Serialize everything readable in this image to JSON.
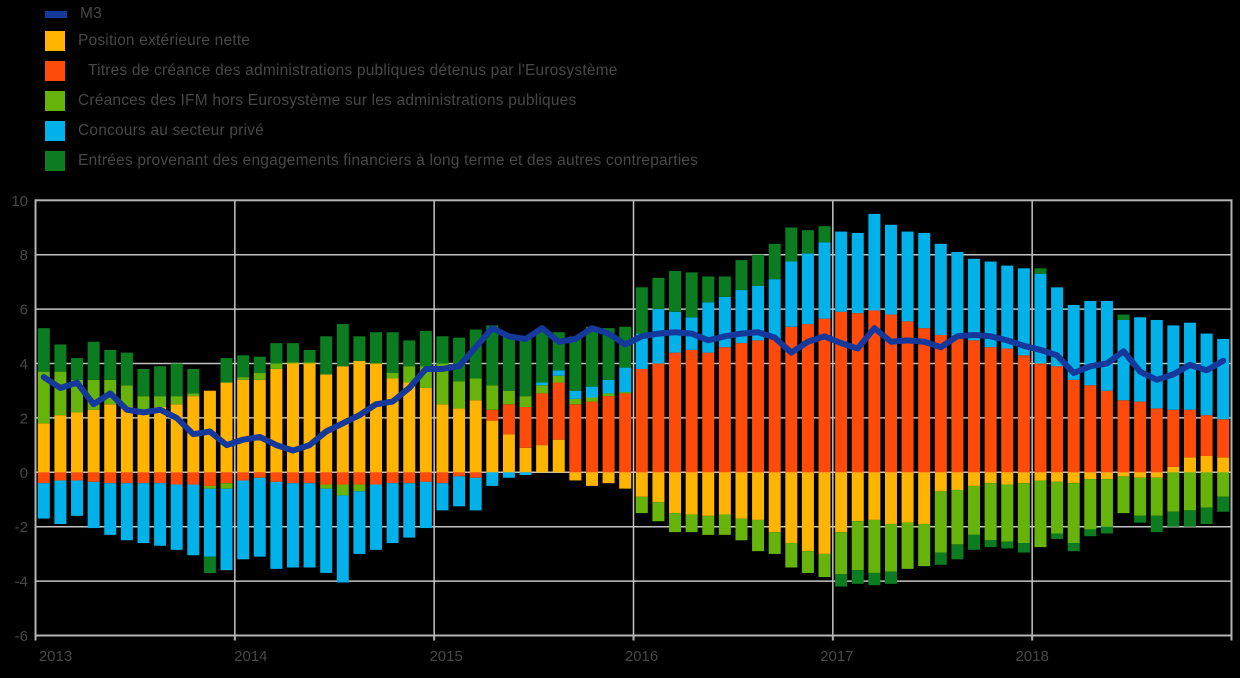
{
  "page": {
    "background": "#000000"
  },
  "legend": {
    "text_color": "#474747"
  },
  "chart_data": {
    "type": "bar",
    "stacked": true,
    "title": "",
    "xlabel": "",
    "ylabel": "",
    "x_years": [
      "2013",
      "2014",
      "2015",
      "2016",
      "2017",
      "2018"
    ],
    "months_per_year": 12,
    "ylim": [
      -6,
      10
    ],
    "yticks": [
      10,
      8,
      6,
      4,
      2,
      0,
      -2,
      -4,
      -6
    ],
    "ytick_labels": [
      "10",
      "8",
      "6",
      "4",
      "2",
      "0",
      "-2",
      "-4",
      "-6"
    ],
    "grid": true,
    "legend_position": "top-left",
    "style": {
      "background": "#000000",
      "grid_color": "#C3C3C3",
      "frame_color": "#B4B4B4",
      "text_color": "#474747",
      "line_width": 6
    },
    "line": {
      "name": "M3",
      "color": "#14389C",
      "values": [
        3.5,
        3.1,
        3.3,
        2.5,
        2.9,
        2.3,
        2.2,
        2.3,
        2.0,
        1.4,
        1.5,
        1.0,
        1.2,
        1.3,
        1.0,
        0.8,
        1.0,
        1.5,
        1.8,
        2.1,
        2.5,
        2.6,
        3.1,
        3.8,
        3.8,
        3.9,
        4.6,
        5.3,
        5.0,
        4.9,
        5.3,
        4.8,
        4.9,
        5.3,
        5.1,
        4.7,
        5.0,
        5.1,
        5.15,
        5.1,
        4.85,
        5.0,
        5.1,
        5.15,
        4.95,
        4.4,
        4.8,
        5.0,
        4.75,
        4.55,
        5.3,
        4.8,
        4.85,
        4.8,
        4.6,
        5.0,
        5.05,
        5.0,
        4.85,
        4.65,
        4.5,
        4.3,
        3.65,
        3.9,
        4.0,
        4.45,
        3.7,
        3.4,
        3.6,
        3.95,
        3.75,
        4.1
      ]
    },
    "series": [
      {
        "name": "Position extérieure nette",
        "color": "#FFB400",
        "values": [
          1.8,
          2.1,
          2.2,
          2.3,
          2.5,
          2.4,
          2.2,
          2.4,
          2.5,
          2.8,
          3.0,
          3.3,
          3.4,
          3.4,
          3.8,
          4.0,
          4.0,
          3.6,
          3.9,
          4.1,
          4.0,
          3.45,
          3.3,
          3.1,
          2.5,
          2.35,
          2.65,
          1.9,
          1.4,
          0.9,
          1.0,
          1.2,
          -0.3,
          -0.5,
          -0.4,
          -0.6,
          -0.9,
          -1.1,
          -1.5,
          -1.55,
          -1.6,
          -1.55,
          -1.7,
          -1.75,
          -2.2,
          -2.6,
          -2.9,
          -3.0,
          -2.2,
          -1.8,
          -1.75,
          -1.9,
          -1.85,
          -1.9,
          -0.7,
          -0.65,
          -0.5,
          -0.4,
          -0.45,
          -0.4,
          -0.3,
          -0.35,
          -0.4,
          -0.25,
          -0.25,
          -0.15,
          -0.2,
          -0.2,
          0.2,
          0.55,
          0.6,
          0.55
        ]
      },
      {
        "name": "Titres de créance des administrations publiques détenus par l'Eurosystème",
        "color": "#FF4B0A",
        "values": [
          -0.4,
          -0.3,
          -0.3,
          -0.35,
          -0.4,
          -0.4,
          -0.4,
          -0.4,
          -0.45,
          -0.45,
          -0.5,
          -0.4,
          -0.3,
          -0.2,
          -0.35,
          -0.4,
          -0.4,
          -0.45,
          -0.45,
          -0.45,
          -0.45,
          -0.4,
          -0.4,
          -0.35,
          -0.4,
          -0.15,
          -0.2,
          0.4,
          1.1,
          1.5,
          1.9,
          2.1,
          2.5,
          2.6,
          2.8,
          2.9,
          3.8,
          4.0,
          4.4,
          4.5,
          4.4,
          4.6,
          4.75,
          4.85,
          4.9,
          5.35,
          5.45,
          5.65,
          5.9,
          5.85,
          5.95,
          5.8,
          5.55,
          5.3,
          5.05,
          5.0,
          4.85,
          4.6,
          4.55,
          4.3,
          4.0,
          3.9,
          3.4,
          3.2,
          3.0,
          2.65,
          2.6,
          2.35,
          2.1,
          1.75,
          1.5,
          1.4
        ]
      },
      {
        "name": "Créances des IFM hors Eurosystème sur les administrations publiques",
        "color": "#66B40A",
        "values": [
          1.9,
          1.6,
          1.2,
          1.1,
          0.9,
          0.8,
          0.6,
          0.4,
          0.3,
          0.1,
          -0.1,
          -0.2,
          0.1,
          0.25,
          0.2,
          0.05,
          0.05,
          -0.15,
          -0.4,
          -0.25,
          0.0,
          0.2,
          0.6,
          0.8,
          1.5,
          1.0,
          0.8,
          0.9,
          0.5,
          0.4,
          0.3,
          0.25,
          0.2,
          0.15,
          0.1,
          0.05,
          -0.6,
          -0.7,
          -0.7,
          -0.65,
          -0.7,
          -0.75,
          -0.8,
          -1.15,
          -0.8,
          -0.9,
          -0.8,
          -0.85,
          -1.55,
          -1.8,
          -1.95,
          -1.75,
          -1.7,
          -1.55,
          -2.25,
          -2.0,
          -1.8,
          -2.1,
          -2.1,
          -2.2,
          -2.45,
          -1.9,
          -2.2,
          -1.85,
          -1.75,
          -1.35,
          -1.4,
          -1.4,
          -1.45,
          -1.4,
          -1.3,
          -0.9
        ]
      },
      {
        "name": "Concours au secteur privé",
        "color": "#00B1EA",
        "values": [
          -1.3,
          -1.6,
          -1.3,
          -1.7,
          -1.9,
          -2.1,
          -2.2,
          -2.3,
          -2.4,
          -2.6,
          -2.5,
          -3.0,
          -2.9,
          -2.9,
          -3.2,
          -3.1,
          -3.1,
          -3.1,
          -3.2,
          -2.3,
          -2.4,
          -2.2,
          -2.0,
          -1.7,
          -1.0,
          -1.1,
          -1.2,
          -0.5,
          -0.2,
          -0.1,
          0.1,
          0.2,
          0.3,
          0.4,
          0.5,
          0.9,
          1.3,
          2.0,
          1.5,
          1.2,
          1.85,
          1.85,
          1.95,
          2.0,
          2.2,
          2.4,
          2.6,
          2.8,
          2.95,
          2.95,
          3.55,
          3.3,
          3.3,
          3.5,
          3.35,
          3.1,
          3.0,
          3.15,
          3.05,
          3.2,
          3.3,
          2.9,
          2.75,
          3.1,
          3.3,
          2.95,
          3.1,
          3.25,
          3.1,
          3.2,
          3.0,
          2.95
        ]
      },
      {
        "name": "Entrées provenant des engagements financiers à long terme et des autres contreparties",
        "color": "#0B7D20",
        "values": [
          1.6,
          1.0,
          0.8,
          1.4,
          1.1,
          1.2,
          1.0,
          1.1,
          1.2,
          0.9,
          -0.6,
          0.9,
          0.8,
          0.6,
          0.75,
          0.7,
          0.45,
          1.4,
          1.55,
          0.9,
          1.15,
          1.5,
          0.95,
          1.3,
          1.0,
          1.6,
          1.8,
          2.2,
          2.0,
          2.2,
          1.9,
          1.4,
          2.0,
          2.2,
          1.9,
          1.5,
          1.7,
          1.15,
          1.5,
          1.65,
          0.95,
          0.75,
          1.1,
          1.15,
          1.3,
          1.25,
          0.85,
          0.6,
          -0.45,
          -0.5,
          -0.45,
          -0.45,
          0.0,
          0.0,
          -0.45,
          -0.55,
          -0.55,
          -0.25,
          -0.25,
          -0.35,
          0.2,
          -0.2,
          -0.3,
          -0.25,
          -0.25,
          0.2,
          -0.25,
          -0.6,
          -0.55,
          -0.6,
          -0.6,
          -0.55
        ]
      }
    ]
  }
}
